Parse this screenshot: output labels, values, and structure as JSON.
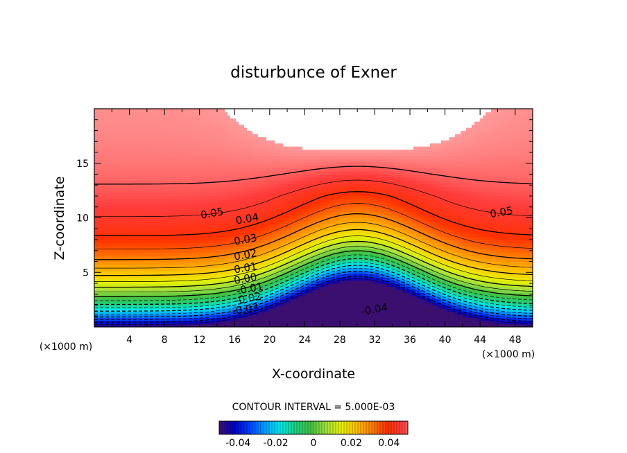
{
  "chart_data": {
    "type": "heatmap",
    "title": "disturbunce of Exner",
    "xlabel": "X-coordinate",
    "ylabel": "Z-coordinate",
    "x_unit_left": "(×1000 m)",
    "x_unit_right": "(×1000 m)",
    "xlim": [
      0,
      50
    ],
    "ylim": [
      0,
      20
    ],
    "x_ticks": [
      "4",
      "8",
      "12",
      "16",
      "20",
      "24",
      "28",
      "32",
      "36",
      "40",
      "44",
      "48"
    ],
    "y_ticks": [
      "5",
      "10",
      "15"
    ],
    "x_tick_values": [
      4,
      8,
      12,
      16,
      20,
      24,
      28,
      32,
      36,
      40,
      44,
      48
    ],
    "y_tick_values": [
      5,
      10,
      15
    ],
    "contour_interval_text": "CONTOUR INTERVAL = 5.000E-03",
    "contour_interval": 0.005,
    "value_range": [
      -0.05,
      0.055
    ],
    "contour_labels": [
      {
        "text": "0.05",
        "x": 13.5,
        "z": 10.1
      },
      {
        "text": "0.05",
        "x": 46.5,
        "z": 10.2
      },
      {
        "text": "0.04",
        "x": 17.5,
        "z": 9.6
      },
      {
        "text": "0.03",
        "x": 17.3,
        "z": 7.7
      },
      {
        "text": "0.02",
        "x": 17.3,
        "z": 6.3
      },
      {
        "text": "0.01",
        "x": 17.3,
        "z": 5.1
      },
      {
        "text": "0.00",
        "x": 17.3,
        "z": 4.1
      },
      {
        "text": "-0.01",
        "x": 17.8,
        "z": 3.2
      },
      {
        "text": "-0.02",
        "x": 17.6,
        "z": 2.3
      },
      {
        "text": "-0.03",
        "x": 17.3,
        "z": 1.3
      },
      {
        "text": "-0.04",
        "x": 32.0,
        "z": 1.3
      }
    ],
    "colorbar": {
      "ticks": [
        "-0.04",
        "-0.02",
        "0",
        "0.02",
        "0.04"
      ],
      "tick_values": [
        -0.04,
        -0.02,
        0,
        0.02,
        0.04
      ],
      "range": [
        -0.05,
        0.05
      ]
    },
    "colormap": [
      "#3b0f6f",
      "#0000c8",
      "#0040ff",
      "#00a0ff",
      "#00e8e8",
      "#20d080",
      "#40c040",
      "#a0e040",
      "#e8f000",
      "#ffc000",
      "#ff8000",
      "#ff3000",
      "#ff3c3c",
      "#ff9a9a"
    ]
  }
}
